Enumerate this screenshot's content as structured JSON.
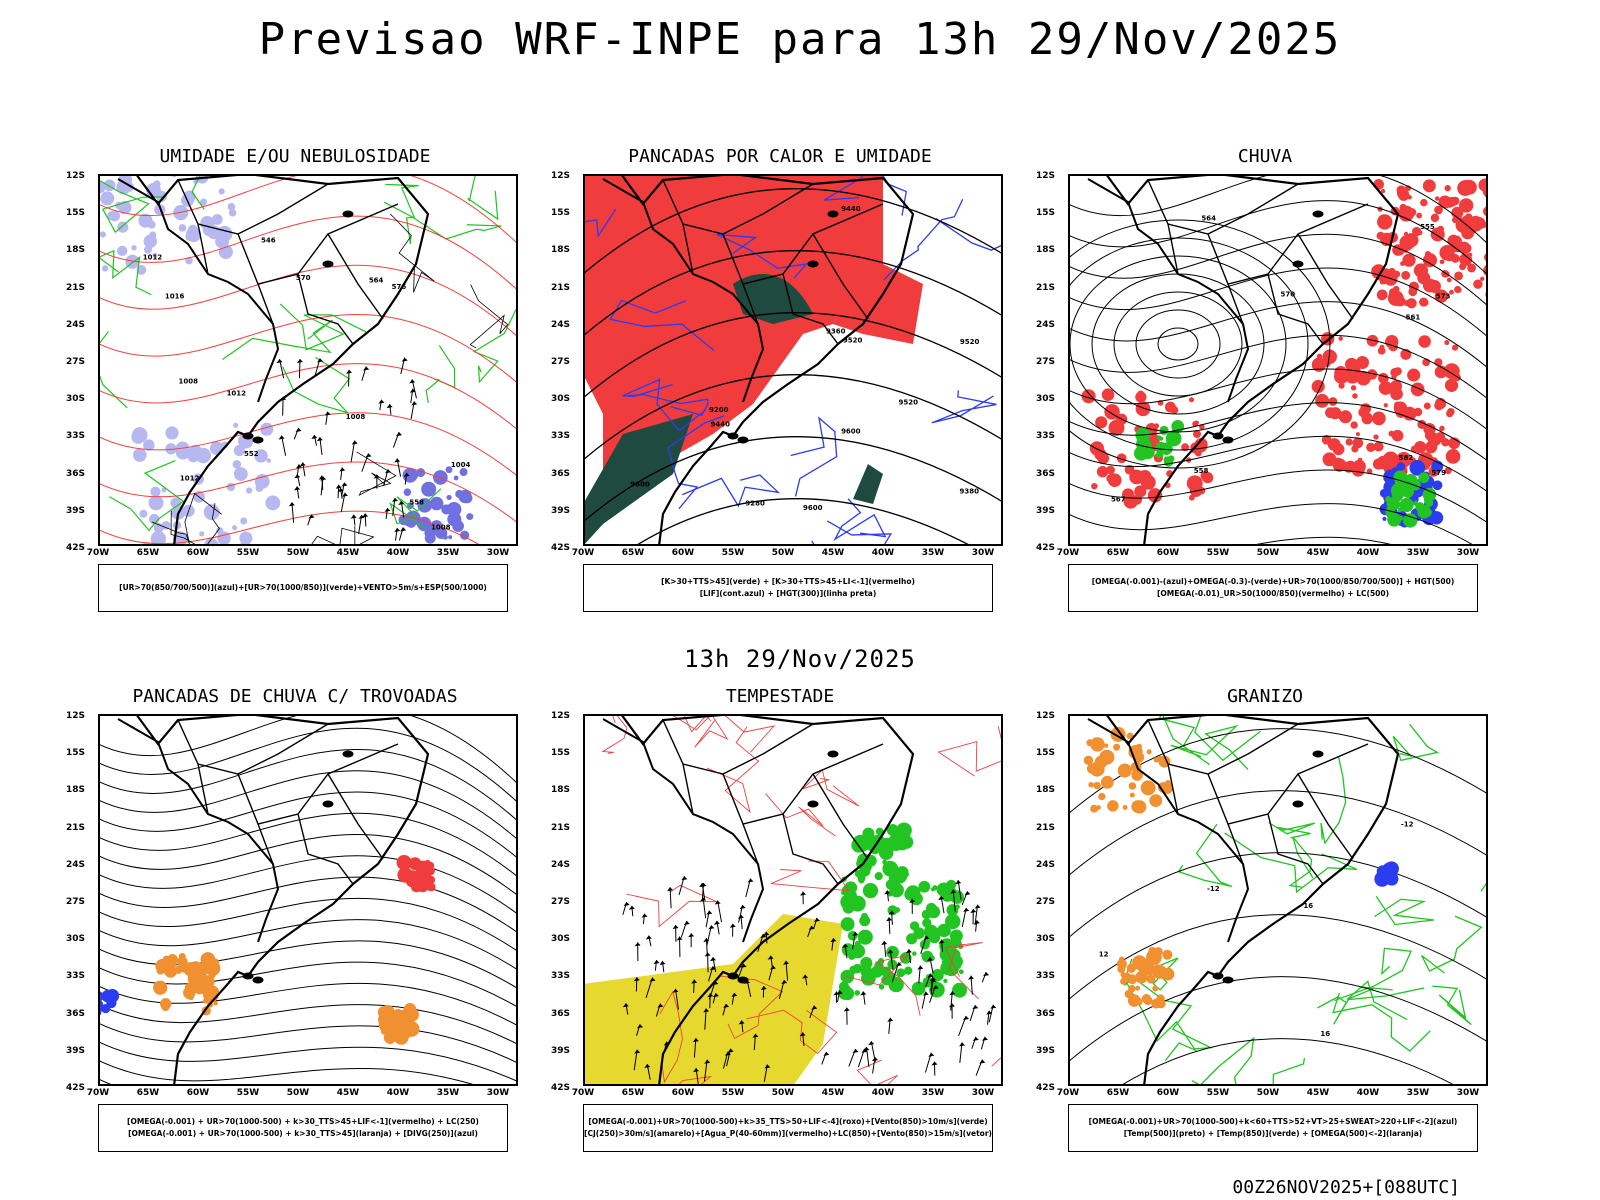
{
  "title": "Previsao WRF-INPE  para 13h 29/Nov/2025",
  "mid_title": "13h 29/Nov/2025",
  "footer": "00Z26NOV2025+[088UTC]",
  "lat_ticks": [
    "12S",
    "15S",
    "18S",
    "21S",
    "24S",
    "27S",
    "30S",
    "33S",
    "36S",
    "39S",
    "42S"
  ],
  "lon_ticks": [
    "70W",
    "65W",
    "60W",
    "55W",
    "50W",
    "45W",
    "40W",
    "35W",
    "30W"
  ],
  "panels": [
    {
      "title": "UMIDADE E/OU NEBULOSIDADE",
      "legend": [
        "[UR>70(850/700/500)](azul)+[UR>70(1000/850)](verde)+VENTO>5m/s+ESP(500/1000)"
      ],
      "contour_labels": [
        "1008",
        "1008",
        "1008",
        "1012",
        "1004",
        "1016",
        "1012",
        "1012",
        "576",
        "570",
        "564",
        "558",
        "552",
        "546"
      ],
      "colors": {
        "fill1": "#b8b8f0",
        "fill2": "#7070e0",
        "contour1": "#22c422",
        "contour2": "#f04040",
        "contour3": "#000000"
      }
    },
    {
      "title": "PANCADAS POR CALOR E UMIDADE",
      "legend": [
        "[K>30+TTS>45](verde) + [K>30+TTS>45+LI<-1](vermelho)",
        "[LIF](cont.azul) + [HGT(300)](linha preta)"
      ],
      "contour_labels": [
        "9600",
        "9600",
        "9600",
        "9520",
        "9520",
        "9520",
        "9440",
        "9440",
        "9360",
        "9380",
        "9280",
        "9200"
      ],
      "colors": {
        "fill1": "#f03c3c",
        "fill2": "#1f4a3f",
        "contour1": "#2c3cf0",
        "contour2": "#000000"
      }
    },
    {
      "title": "CHUVA",
      "legend": [
        "[OMEGA(-0.001)-(azul)+OMEGA(-0.3)-(verde)+UR>70(1000/850/700/500)] + HGT(500)",
        "[OMEGA(-0.01)_UR>50(1000/850)(vermelho) + LC(500)"
      ],
      "contour_labels": [
        "582",
        "573",
        "579",
        "570",
        "567",
        "564",
        "561",
        "558",
        "555"
      ],
      "colors": {
        "fill1": "#f03c3c",
        "fill2": "#2c3cf0",
        "fill3": "#22c422",
        "contour1": "#000000"
      }
    },
    {
      "title": "PANCADAS DE CHUVA C/ TROVOADAS",
      "legend": [
        "[OMEGA(-0.001) + UR>70(1000-500) + k>30_TTS>45+LIF<-1](vermelho) + LC(250)",
        "[OMEGA(-0.001) + UR>70(1000-500) + k>30_TTS>45](laranja) + [DIVG(250)](azul)"
      ],
      "contour_labels": [],
      "colors": {
        "fill1": "#f03c3c",
        "fill2": "#f09030",
        "fill3": "#2c3cf0",
        "contour1": "#000000"
      }
    },
    {
      "title": "TEMPESTADE",
      "legend": [
        "[OMEGA(-0.001)+UR>70(1000-500)+k>35_TTS>50+LIF<-4](roxo)+[Vento(850)>10m/s](verde)",
        "[CJ(250)>30m/s](amarelo)+[Agua_P(40-60mm)](vermelho)+LC(850)+[Vento(850)>15m/s](vetor)"
      ],
      "contour_labels": [],
      "colors": {
        "fill1": "#e6d82e",
        "fill2": "#22c422",
        "contour1": "#f04040",
        "contour2": "#000000"
      }
    },
    {
      "title": "GRANIZO",
      "legend": [
        "[OMEGA(-0.001)+UR>70(1000-500)+k<60+TTS>52+VT>25+SWEAT>220+LIF<-2](azul)",
        "[Temp(500)](preto) + [Temp(850)](verde) + [OMEGA(500)<-2](laranja)"
      ],
      "contour_labels": [
        "12",
        "16",
        "16",
        "-12",
        "-12"
      ],
      "colors": {
        "fill1": "#f09030",
        "fill2": "#2c3cf0",
        "contour1": "#22c422",
        "contour2": "#000000"
      }
    }
  ]
}
